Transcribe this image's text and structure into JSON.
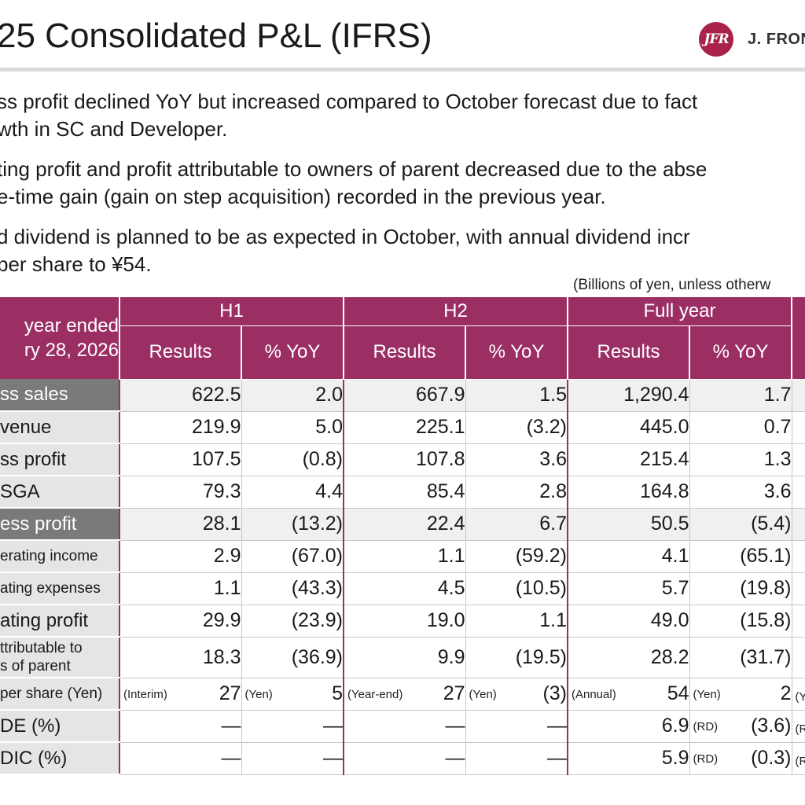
{
  "header": {
    "title": "25 Consolidated P&L (IFRS)",
    "logo_mark": "JFR",
    "logo_text": "J. FRON"
  },
  "bullets": [
    {
      "line1": "ss profit declined YoY but increased compared to October forecast due to fact",
      "line2": "wth in SC and Developer."
    },
    {
      "line1": "ting profit and profit attributable to owners of parent decreased due to the abse",
      "line2": "e-time gain (gain on step acquisition) recorded in the previous year."
    },
    {
      "line1": "d dividend is planned to be as expected in October, with annual dividend incr",
      "line2": "per share to ¥54."
    }
  ],
  "units_note": "(Billions of yen, unless otherw",
  "table": {
    "corner": {
      "line1": "year ended",
      "line2": "ry 28, 2026"
    },
    "groups": [
      "H1",
      "H2",
      "Full year"
    ],
    "subheaders": [
      "Results",
      "% YoY",
      "Results",
      "% YoY",
      "Results",
      "% YoY"
    ],
    "rows": [
      {
        "label": "ss sales",
        "values": [
          "622.5",
          "2.0",
          "667.9",
          "1.5",
          "1,290.4",
          "1.7"
        ]
      },
      {
        "label": "venue",
        "values": [
          "219.9",
          "5.0",
          "225.1",
          "(3.2)",
          "445.0",
          "0.7"
        ]
      },
      {
        "label": "ss profit",
        "values": [
          "107.5",
          "(0.8)",
          "107.8",
          "3.6",
          "215.4",
          "1.3"
        ]
      },
      {
        "label": "SGA",
        "values": [
          "79.3",
          "4.4",
          "85.4",
          "2.8",
          "164.8",
          "3.6"
        ]
      },
      {
        "label": "ess profit",
        "values": [
          "28.1",
          "(13.2)",
          "22.4",
          "6.7",
          "50.5",
          "(5.4)"
        ]
      },
      {
        "label": "erating income",
        "values": [
          "2.9",
          "(67.0)",
          "1.1",
          "(59.2)",
          "4.1",
          "(65.1)"
        ]
      },
      {
        "label": "ating expenses",
        "values": [
          "1.1",
          "(43.3)",
          "4.5",
          "(10.5)",
          "5.7",
          "(19.8)"
        ]
      },
      {
        "label": "ating profit",
        "values": [
          "29.9",
          "(23.9)",
          "19.0",
          "1.1",
          "49.0",
          "(15.8)"
        ]
      },
      {
        "label1": "ttributable to",
        "label2": "s of parent",
        "values": [
          "18.3",
          "(36.9)",
          "9.9",
          "(19.5)",
          "28.2",
          "(31.7)"
        ]
      },
      {
        "label": "per share (Yen)",
        "values": [
          "27",
          "5",
          "27",
          "(3)",
          "54",
          "2"
        ],
        "tags": [
          "(Interim)",
          "(Yen)",
          "(Year-end)",
          "(Yen)",
          "(Annual)",
          "(Yen)"
        ]
      },
      {
        "label": "DE (%)",
        "values": [
          "—",
          "—",
          "—",
          "—",
          "6.9",
          "(3.6)"
        ],
        "tag_fy_yoy": "(RD)"
      },
      {
        "label": "DIC (%)",
        "values": [
          "—",
          "—",
          "—",
          "—",
          "5.9",
          "(0.3)"
        ],
        "tag_fy_yoy": "(RD)"
      }
    ],
    "cut_col_tags": [
      "(Y",
      "(R",
      "(R"
    ]
  },
  "colors": {
    "header_bg": "#9b2f64",
    "label_bg": "#e5e5e5",
    "label_dark_bg": "#7a7a7a",
    "logo": "#a8224a"
  }
}
